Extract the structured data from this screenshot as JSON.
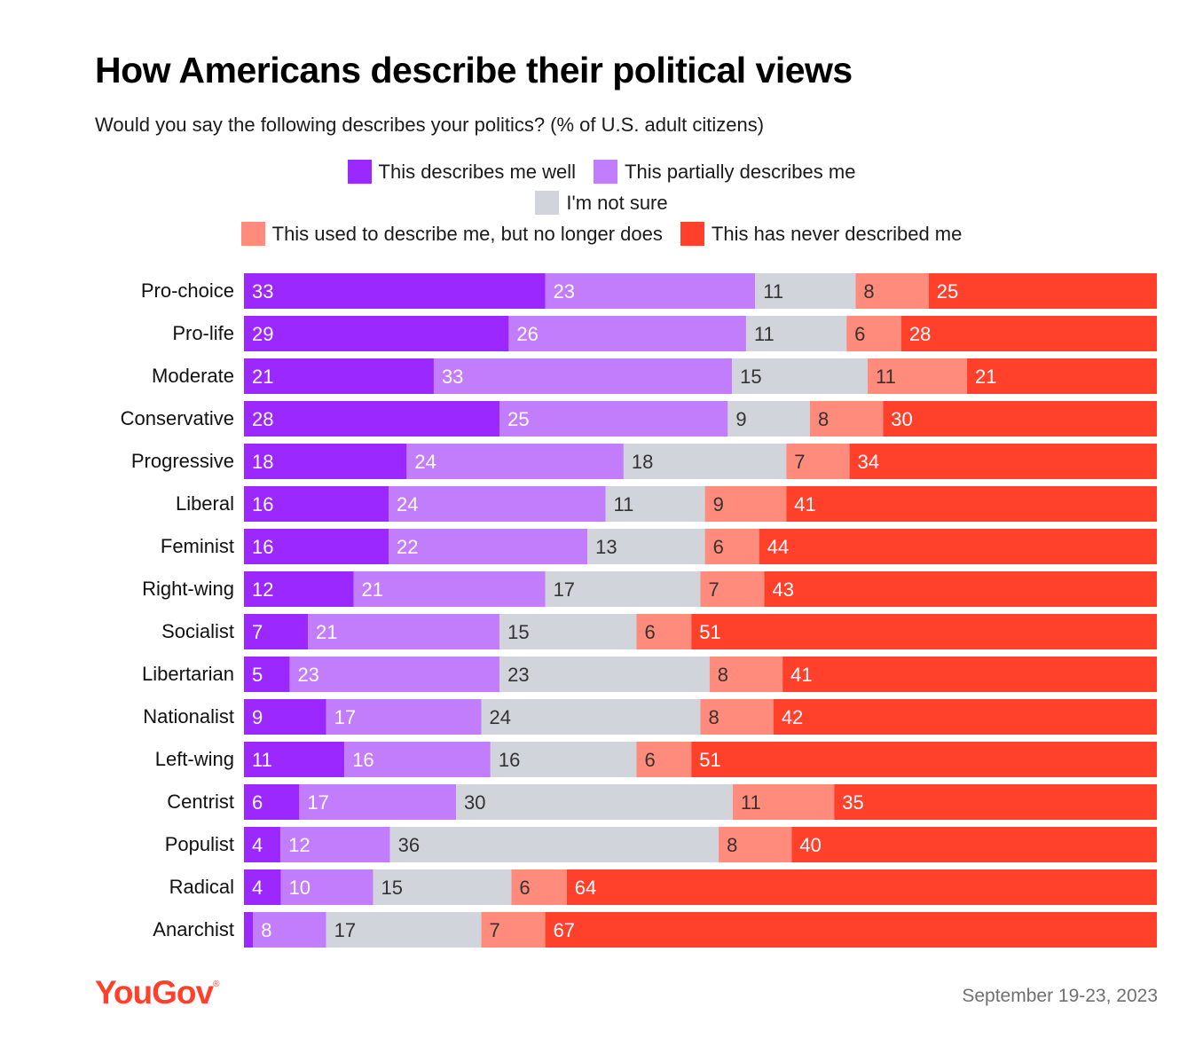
{
  "title": "How Americans describe their political views",
  "subtitle": "Would you say the following describes your politics? (% of U.S. adult citizens)",
  "legend": [
    {
      "label": "This describes me well",
      "color": "#9b28ff"
    },
    {
      "label": "This partially describes me",
      "color": "#c27dfc"
    },
    {
      "label": "I'm not sure",
      "color": "#d2d4dc"
    },
    {
      "label": "This used to describe me, but no longer does",
      "color": "#fe8b7b"
    },
    {
      "label": "This has never described me",
      "color": "#ff412c"
    }
  ],
  "chart_data": {
    "type": "bar",
    "orientation": "horizontal-stacked-100",
    "title": "How Americans describe their political views",
    "categories": [
      "Pro-choice",
      "Pro-life",
      "Moderate",
      "Conservative",
      "Progressive",
      "Liberal",
      "Feminist",
      "Right-wing",
      "Socialist",
      "Libertarian",
      "Nationalist",
      "Left-wing",
      "Centrist",
      "Populist",
      "Radical",
      "Anarchist"
    ],
    "series": [
      {
        "name": "This describes me well",
        "color": "#9b28ff",
        "label_color": "#ffffff",
        "values": [
          33,
          29,
          21,
          28,
          18,
          16,
          16,
          12,
          7,
          5,
          9,
          11,
          6,
          4,
          4,
          1
        ],
        "labels": [
          "33",
          "29",
          "21",
          "28",
          "18",
          "16",
          "16",
          "12",
          "7",
          "5",
          "9",
          "11",
          "6",
          "4",
          "4",
          ""
        ]
      },
      {
        "name": "This partially describes me",
        "color": "#c27dfc",
        "label_color": "#ffffff",
        "values": [
          23,
          26,
          33,
          25,
          24,
          24,
          22,
          21,
          21,
          23,
          17,
          16,
          17,
          12,
          10,
          8
        ]
      },
      {
        "name": "I'm not sure",
        "color": "#d2d4dc",
        "label_color": "#333333",
        "values": [
          11,
          11,
          15,
          9,
          18,
          11,
          13,
          17,
          15,
          23,
          24,
          16,
          30,
          36,
          15,
          17
        ]
      },
      {
        "name": "This used to describe me, but no longer does",
        "color": "#fe8b7b",
        "label_color": "#333333",
        "values": [
          8,
          6,
          11,
          8,
          7,
          9,
          6,
          7,
          6,
          8,
          8,
          6,
          11,
          8,
          6,
          7
        ]
      },
      {
        "name": "This has never described me",
        "color": "#ff412c",
        "label_color": "#ffffff",
        "values": [
          25,
          28,
          21,
          30,
          34,
          41,
          44,
          43,
          51,
          41,
          42,
          51,
          35,
          40,
          64,
          67
        ]
      }
    ],
    "xlim": [
      0,
      100
    ]
  },
  "footer": {
    "logo": "YouGov",
    "date": "September 19-23, 2023"
  }
}
